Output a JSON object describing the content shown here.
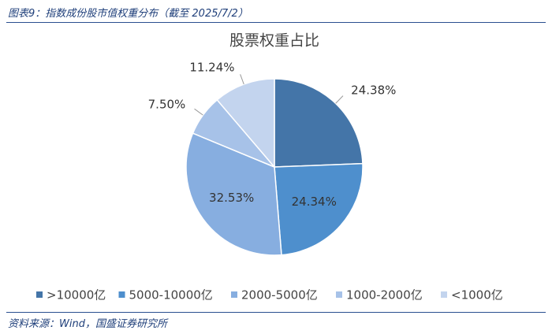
{
  "header": {
    "title": "图表9：指数成份股市值权重分布（截至 2025/7/2）"
  },
  "chart_data": {
    "type": "pie",
    "title": "股票权重占比",
    "categories": [
      ">10000亿",
      "5000-10000亿",
      "2000-5000亿",
      "1000-2000亿",
      "<1000亿"
    ],
    "values": [
      24.38,
      24.34,
      32.53,
      7.5,
      11.24
    ],
    "value_labels": [
      "24.38%",
      "24.34%",
      "32.53%",
      "7.50%",
      "11.24%"
    ],
    "colors": [
      "#4475a8",
      "#4e8fcd",
      "#87aee0",
      "#a7c2e8",
      "#c3d4ee"
    ],
    "legend": "bottom"
  },
  "footer": {
    "source": "资料来源：Wind，国盛证券研究所"
  }
}
